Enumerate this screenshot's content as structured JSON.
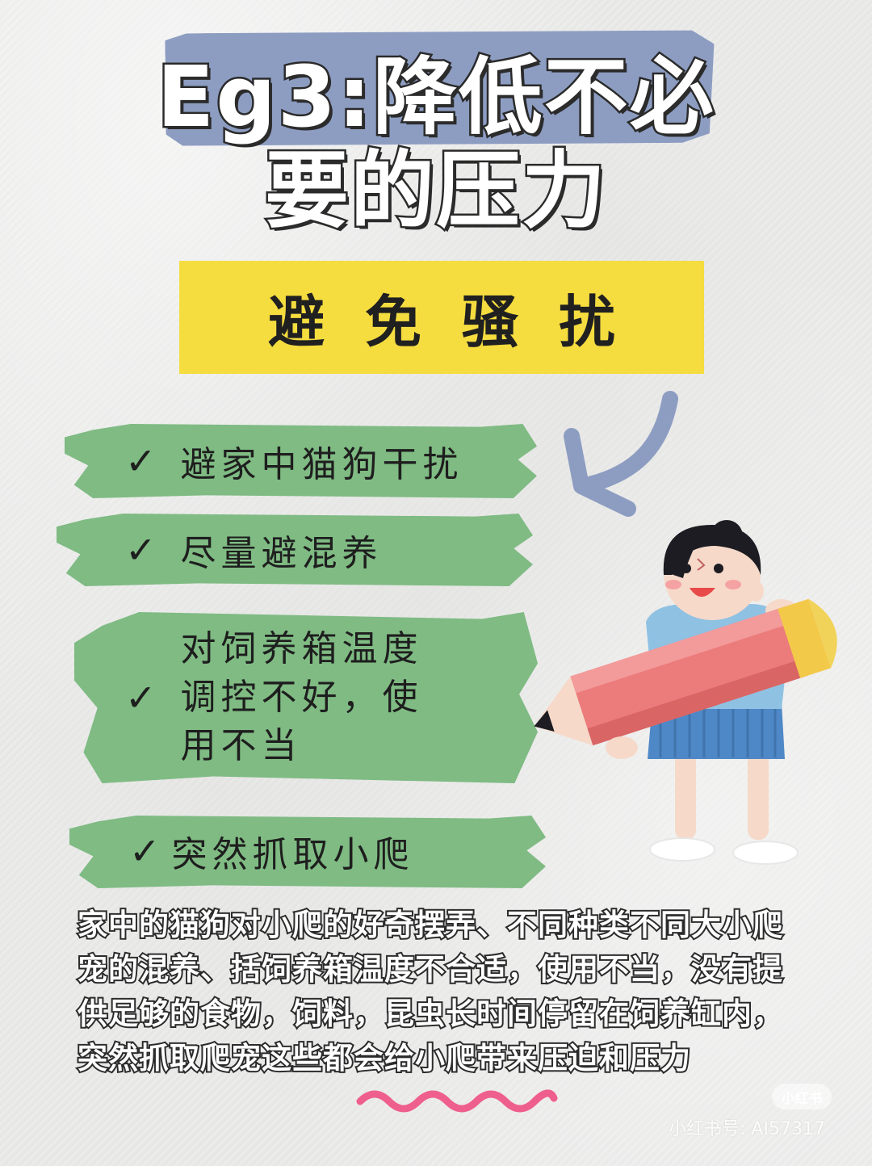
{
  "title": {
    "line1": "Eg3:降低不必",
    "line2": "要的压力"
  },
  "subtitle": "避免骚扰",
  "checklist": [
    {
      "check": "✓",
      "text": "避家中猫狗干扰"
    },
    {
      "check": "✓",
      "text": "尽量避混养"
    },
    {
      "check": "✓",
      "lines": [
        "对饲养箱温度",
        "调控不好，使",
        "用不当"
      ]
    },
    {
      "check": "✓",
      "text": "突然抓取小爬"
    }
  ],
  "paragraph": "家中的猫狗对小爬的好奇摆弄、不同种类不同大小爬宠的混养、括饲养箱温度不合适，使用不当，没有提供足够的食物，饲料，昆虫长时间停留在饲养缸内，突然抓取爬宠这些都会给小爬带来压迫和压力",
  "watermark": {
    "logo": "小红书",
    "id": "小红书号: AI57317"
  },
  "colors": {
    "title_bg": "#8d9dc2",
    "subtitle_bg": "#f5dc3f",
    "check_bg": "#7fbb83",
    "arrow": "#8d9dc2",
    "pencil": "#ec7b7b",
    "wave": "#ef5f8d"
  }
}
